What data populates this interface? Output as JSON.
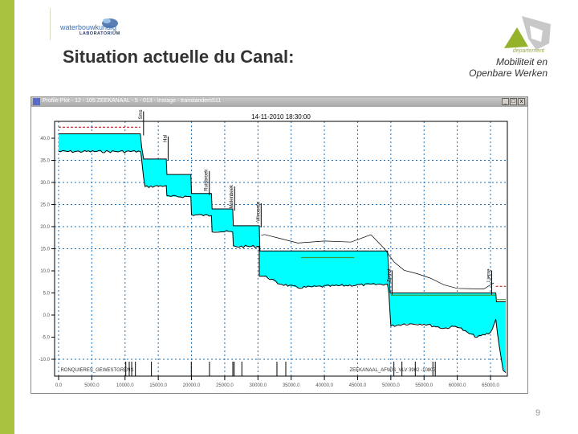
{
  "slide": {
    "title": "Situation actuelle du Canal:",
    "page_number": "9",
    "logo_left": {
      "line1": "waterbouwkundig",
      "line2": "LABORATORIUM"
    },
    "logo_right": {
      "line1": "departement",
      "line2": "Mobiliteit en",
      "line3": "Openbare Werken"
    },
    "accent_color": "#a9c23f"
  },
  "window": {
    "title": "Profile Plot - 12 - 105 ZEEKANAAL - 5 - 013 - Instage - transtandem511",
    "buttons": [
      "_",
      "□",
      "x"
    ]
  },
  "chart_data": {
    "type": "area",
    "title": "14-11-2010 18:30:00",
    "xlabel": "",
    "ylabel": "",
    "xlim": [
      -800,
      67500
    ],
    "ylim": [
      -13.8,
      44
    ],
    "grid": true,
    "x_ticks": [
      "0.0",
      "5000.0",
      "10000.0",
      "15000.0",
      "20000.0",
      "25000.0",
      "30000.0",
      "35000.0",
      "40000.0",
      "45000.0",
      "50000.0",
      "55000.0",
      "60000.0",
      "65000.0"
    ],
    "y_ticks": [
      "40.0",
      "35.0",
      "30.0",
      "25.0",
      "20.0",
      "15.0",
      "10.0",
      "5.0",
      "0.0",
      "-5.0",
      "-10.0"
    ],
    "y_grid_values": [
      35,
      30,
      25,
      20,
      15,
      -10
    ],
    "colors": {
      "water": "#00ffff",
      "bed": "#000000",
      "grid": "#1f6fb5",
      "max_level": "#cc0000",
      "reference": "#3a9a3a"
    },
    "water_level": [
      [
        0,
        41
      ],
      [
        12300,
        41
      ],
      [
        12500,
        38
      ],
      [
        12800,
        35.3
      ],
      [
        16200,
        35.3
      ],
      [
        16300,
        31.8
      ],
      [
        19900,
        31.8
      ],
      [
        20000,
        27.5
      ],
      [
        23000,
        27.5
      ],
      [
        23100,
        24
      ],
      [
        26200,
        24
      ],
      [
        26300,
        20.2
      ],
      [
        30200,
        20.2
      ],
      [
        30300,
        14.5
      ],
      [
        49500,
        14.5
      ],
      [
        49900,
        5
      ],
      [
        65800,
        5
      ],
      [
        65900,
        3
      ],
      [
        67300,
        3
      ]
    ],
    "bed_level": [
      [
        0,
        37
      ],
      [
        12300,
        37
      ],
      [
        12400,
        36.5
      ],
      [
        12800,
        31
      ],
      [
        13000,
        29
      ],
      [
        16200,
        29.3
      ],
      [
        16300,
        26.8
      ],
      [
        19900,
        26.8
      ],
      [
        20000,
        22.7
      ],
      [
        23000,
        22.5
      ],
      [
        23100,
        19
      ],
      [
        26200,
        18.8
      ],
      [
        26300,
        15.5
      ],
      [
        30200,
        15.5
      ],
      [
        30200,
        9
      ],
      [
        31500,
        8.5
      ],
      [
        33000,
        7.2
      ],
      [
        36000,
        6.2
      ],
      [
        40000,
        6.5
      ],
      [
        45000,
        6.8
      ],
      [
        49500,
        7
      ],
      [
        49700,
        5
      ],
      [
        50000,
        -2.5
      ],
      [
        52000,
        -2
      ],
      [
        55000,
        -2
      ],
      [
        58000,
        -3
      ],
      [
        60000,
        -2.5
      ],
      [
        61500,
        -4
      ],
      [
        63000,
        -5
      ],
      [
        65000,
        -4
      ],
      [
        65800,
        -1
      ],
      [
        66300,
        -7
      ],
      [
        66900,
        -12.5
      ],
      [
        67300,
        -13
      ]
    ],
    "bank_line": [
      [
        30500,
        18
      ],
      [
        31000,
        18.5
      ],
      [
        33000,
        17.5
      ],
      [
        36000,
        16
      ],
      [
        40000,
        16.5
      ],
      [
        44000,
        16.5
      ],
      [
        47000,
        18
      ],
      [
        49000,
        15
      ],
      [
        50500,
        12
      ],
      [
        52000,
        10
      ],
      [
        54000,
        9
      ],
      [
        56000,
        8
      ],
      [
        58000,
        7
      ],
      [
        60000,
        6
      ],
      [
        62000,
        6
      ],
      [
        64000,
        6.2
      ],
      [
        65500,
        7
      ]
    ],
    "max_level_lines": [
      [
        [
          0,
          42.5
        ],
        [
          12300,
          42.5
        ]
      ],
      [
        [
          65800,
          6.5
        ],
        [
          67300,
          6.5
        ]
      ]
    ],
    "reference_lines": [
      [
        [
          36500,
          13
        ],
        [
          44500,
          13
        ]
      ],
      [
        [
          50000,
          4.5
        ],
        [
          65800,
          4.5
        ]
      ],
      [
        [
          65800,
          3.5
        ],
        [
          67300,
          3.5
        ]
      ]
    ],
    "structure_labels": [
      {
        "x": 12300,
        "text": "Sms"
      },
      {
        "x": 16000,
        "text": "Hal"
      },
      {
        "x": 22200,
        "text": "Ruisbroek"
      },
      {
        "x": 26000,
        "text": "Molenbeek"
      },
      {
        "x": 30000,
        "text": "Vilvoorde"
      },
      {
        "x": 49700,
        "text": "Zemst"
      },
      {
        "x": 64700,
        "text": "Lierse"
      }
    ],
    "bottom_markers": [
      10110,
      10630,
      11000,
      11560,
      13970,
      19970,
      22710,
      26220,
      26420,
      27580,
      32860,
      34190,
      50460,
      51670,
      53680,
      56330,
      56690
    ],
    "bottom_labels": [
      {
        "x": 300,
        "text": "RONQUIERES_GEWESTGRENS"
      },
      {
        "x": 43800,
        "text": "ZEEKANAAL_AFWIS_VLV 3902 -10807"
      }
    ]
  }
}
